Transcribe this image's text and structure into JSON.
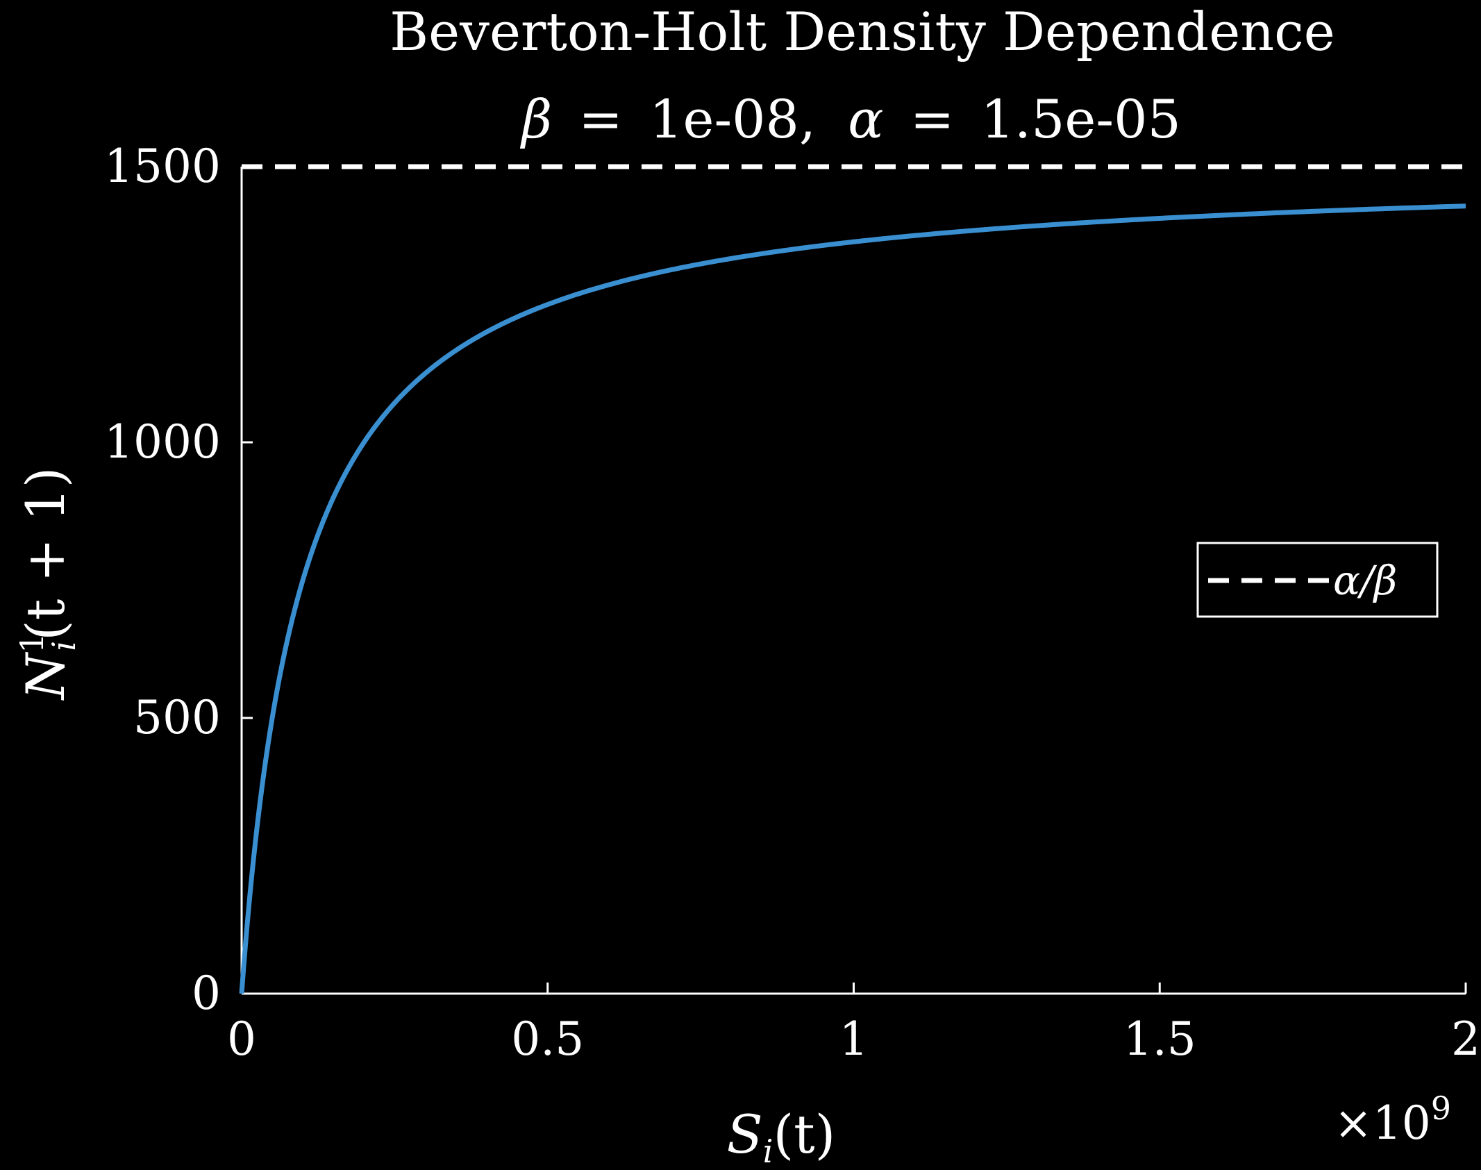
{
  "chart_data": {
    "type": "line",
    "title": "Beverton-Holt Density Dependence",
    "subtitle_parts": {
      "beta_symbol": "β",
      "equals": "=",
      "beta_value": "1e-08,",
      "alpha_symbol": "α",
      "alpha_value": "1.5e-05"
    },
    "xlabel": {
      "main": "S",
      "sub": "i",
      "rest": "(t)"
    },
    "ylabel": {
      "main": "N",
      "sub": "i",
      "sup": "1",
      "rest": "(t + 1)"
    },
    "x_multiplier": {
      "prefix": "×10",
      "exp": "9"
    },
    "xlim": [
      0,
      2000000000
    ],
    "ylim": [
      0,
      1500
    ],
    "xticks": [
      {
        "value": 0,
        "label": "0"
      },
      {
        "value": 500000000,
        "label": "0.5"
      },
      {
        "value": 1000000000,
        "label": "1"
      },
      {
        "value": 1500000000,
        "label": "1.5"
      },
      {
        "value": 2000000000,
        "label": "2"
      }
    ],
    "yticks": [
      {
        "value": 0,
        "label": "0"
      },
      {
        "value": 500,
        "label": "500"
      },
      {
        "value": 1000,
        "label": "1000"
      },
      {
        "value": 1500,
        "label": "1500"
      }
    ],
    "alpha": 1.5e-05,
    "beta": 1e-08,
    "series": [
      {
        "style": "solid",
        "color": "#3a8fd1",
        "formula": "alpha*S/(1+beta*S)",
        "x": [
          0,
          10000000,
          25000000,
          50000000,
          100000000,
          150000000,
          200000000,
          300000000,
          400000000,
          500000000,
          700000000,
          1000000000,
          1300000000,
          1600000000,
          2000000000
        ],
        "y": [
          0,
          136.4,
          300.0,
          500.0,
          750.0,
          900.0,
          1000.0,
          1125.0,
          1200.0,
          1250.0,
          1312.5,
          1363.6,
          1392.9,
          1411.8,
          1428.6
        ]
      },
      {
        "name": "α/β",
        "style": "dashed",
        "color": "#ffffff",
        "x": [
          0,
          2000000000
        ],
        "y": [
          1500,
          1500
        ]
      }
    ],
    "legend": {
      "label": "α/β",
      "position": "right"
    },
    "grid": false,
    "background": "#000000",
    "axis_color": "#ffffff"
  }
}
